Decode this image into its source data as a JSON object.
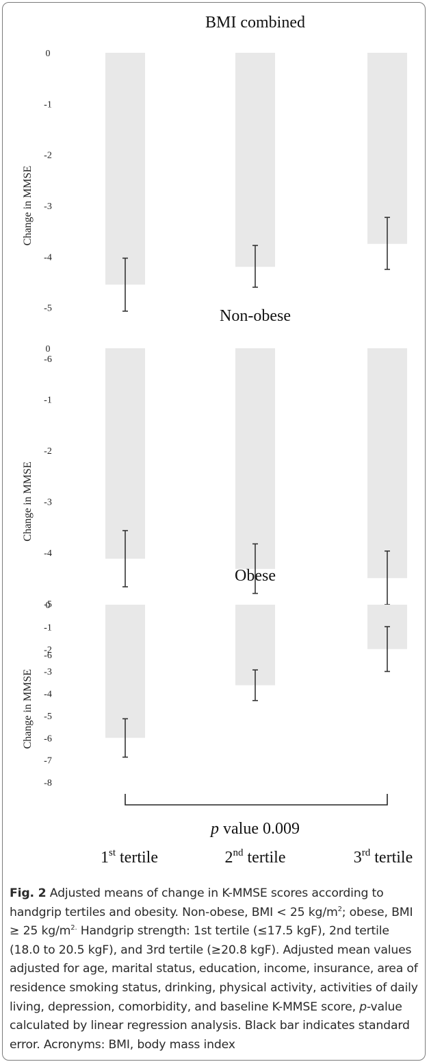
{
  "chart_data": [
    {
      "type": "bar",
      "title": "BMI combined",
      "ylabel": "Change in MMSE",
      "categories": [
        "1st tertile",
        "2nd tertile",
        "3rd tertile"
      ],
      "values": [
        -4.55,
        -4.2,
        -3.75
      ],
      "error_low": [
        -5.07,
        -4.6,
        -4.25
      ],
      "error_high": [
        -4.03,
        -3.78,
        -3.23
      ],
      "ylim": [
        -6,
        0
      ],
      "yticks": [
        "0",
        "-1",
        "-2",
        "-3",
        "-4",
        "-5",
        "-6"
      ],
      "bar_color": "#e8e8e8",
      "error_color": "#333333"
    },
    {
      "type": "bar",
      "title": "Non-obese",
      "ylabel": "Change in MMSE",
      "categories": [
        "1st tertile",
        "2nd tertile",
        "3rd tertile"
      ],
      "values": [
        -4.12,
        -4.32,
        -4.5
      ],
      "error_low": [
        -4.67,
        -4.8,
        -5.02
      ],
      "error_high": [
        -3.57,
        -3.83,
        -3.97
      ],
      "ylim": [
        -6,
        0
      ],
      "yticks": [
        "0",
        "-1",
        "-2",
        "-3",
        "-4",
        "-5",
        "-6"
      ],
      "bar_color": "#e8e8e8",
      "error_color": "#333333"
    },
    {
      "type": "bar",
      "title": "Obese",
      "ylabel": "Change in MMSE",
      "categories": [
        "1st tertile",
        "2nd tertile",
        "3rd tertile"
      ],
      "values": [
        -6.0,
        -3.63,
        -2.0
      ],
      "error_low": [
        -6.87,
        -4.32,
        -3.01
      ],
      "error_high": [
        -5.14,
        -2.94,
        -0.99
      ],
      "ylim": [
        -8,
        0
      ],
      "yticks": [
        "0",
        "-1",
        "-2",
        "-3",
        "-4",
        "-5",
        "-6",
        "-7",
        "-8"
      ],
      "bar_color": "#e8e8e8",
      "error_color": "#333333",
      "annotation": "p value 0.009",
      "annotation_italic": "p",
      "annotation_rest": " value 0.009"
    }
  ],
  "x_labels": [
    {
      "base": "1",
      "sup": "st",
      "rest": " tertile"
    },
    {
      "base": "2",
      "sup": "nd",
      "rest": " tertile"
    },
    {
      "base": "3",
      "sup": "rd",
      "rest": " tertile"
    }
  ],
  "caption": {
    "fig_label": "Fig. 2",
    "text_1": " Adjusted means of change in K-MMSE scores according to handgrip tertiles and obesity. Non-obese, BMI < 25 kg/m",
    "sup_1": "2",
    "text_2": "; obese, BMI ≥ 25 kg/m",
    "sup_2": "2.",
    "text_3": " Handgrip strength: 1st tertile (≤17.5 kgF), 2nd tertile (18.0 to 20.5 kgF), and 3rd tertile (≥20.8 kgF). Adjusted mean values adjusted for age, marital status, education, income, insurance, area of residence smoking status, drinking, physical activity, activities of daily living, depression, comorbidity, and baseline K-MMSE score, ",
    "italic_p": "p",
    "text_4": "-value calculated by linear regression analysis. Black bar indicates standard error. Acronyms: BMI, body mass index"
  }
}
